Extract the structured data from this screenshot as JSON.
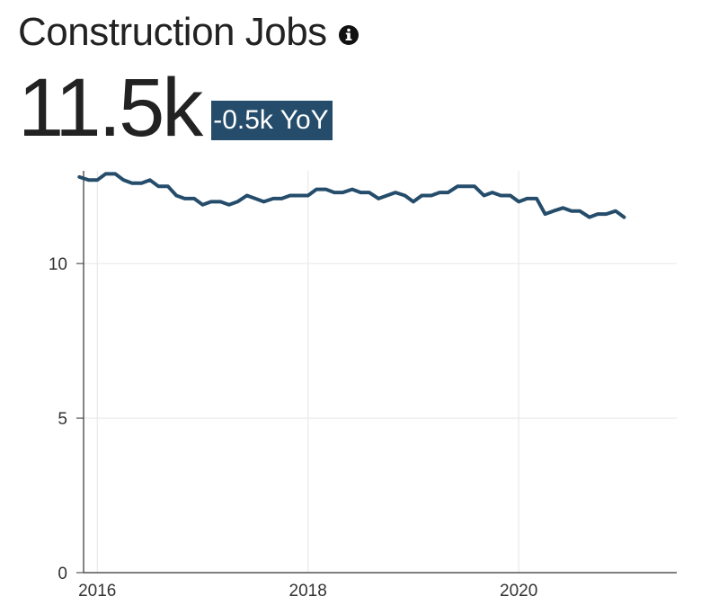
{
  "header": {
    "title": "Construction Jobs",
    "info_icon": "info-circle-icon"
  },
  "kpi": {
    "value": "11.5k",
    "change": "-0.5k YoY",
    "badge_color": "#254d6b"
  },
  "chart_data": {
    "type": "line",
    "xlabel": "",
    "ylabel": "",
    "line_color": "#254d6b",
    "grid": true,
    "x_ticks": [
      {
        "label": "2016",
        "value": 2016
      },
      {
        "label": "2018",
        "value": 2018
      },
      {
        "label": "2020",
        "value": 2020
      }
    ],
    "y_ticks": [
      {
        "label": "0",
        "value": 0
      },
      {
        "label": "5",
        "value": 5
      },
      {
        "label": "10",
        "value": 10
      }
    ],
    "xlim": [
      2015.87,
      2021.5
    ],
    "ylim": [
      0,
      13
    ],
    "series": [
      {
        "x": [
          2015.83,
          2015.92,
          2016.0,
          2016.08,
          2016.17,
          2016.25,
          2016.33,
          2016.42,
          2016.5,
          2016.58,
          2016.67,
          2016.75,
          2016.83,
          2016.92,
          2017.0,
          2017.08,
          2017.17,
          2017.25,
          2017.33,
          2017.42,
          2017.5,
          2017.58,
          2017.67,
          2017.75,
          2017.83,
          2017.92,
          2018.0,
          2018.08,
          2018.17,
          2018.25,
          2018.33,
          2018.42,
          2018.5,
          2018.58,
          2018.67,
          2018.75,
          2018.83,
          2018.92,
          2019.0,
          2019.08,
          2019.17,
          2019.25,
          2019.33,
          2019.42,
          2019.5,
          2019.58,
          2019.67,
          2019.75,
          2019.83,
          2019.92,
          2020.0,
          2020.08,
          2020.17,
          2020.25,
          2020.33,
          2020.42,
          2020.5,
          2020.58,
          2020.67,
          2020.75,
          2020.83,
          2020.92,
          2021.0
        ],
        "y": [
          12.8,
          12.7,
          12.7,
          12.9,
          12.9,
          12.7,
          12.6,
          12.6,
          12.7,
          12.5,
          12.5,
          12.2,
          12.1,
          12.1,
          11.9,
          12.0,
          12.0,
          11.9,
          12.0,
          12.2,
          12.1,
          12.0,
          12.1,
          12.1,
          12.2,
          12.2,
          12.2,
          12.4,
          12.4,
          12.3,
          12.3,
          12.4,
          12.3,
          12.3,
          12.1,
          12.2,
          12.3,
          12.2,
          12.0,
          12.2,
          12.2,
          12.3,
          12.3,
          12.5,
          12.5,
          12.5,
          12.2,
          12.3,
          12.2,
          12.2,
          12.0,
          12.1,
          12.1,
          11.6,
          11.7,
          11.8,
          11.7,
          11.7,
          11.5,
          11.6,
          11.6,
          11.7,
          11.5
        ]
      }
    ]
  }
}
